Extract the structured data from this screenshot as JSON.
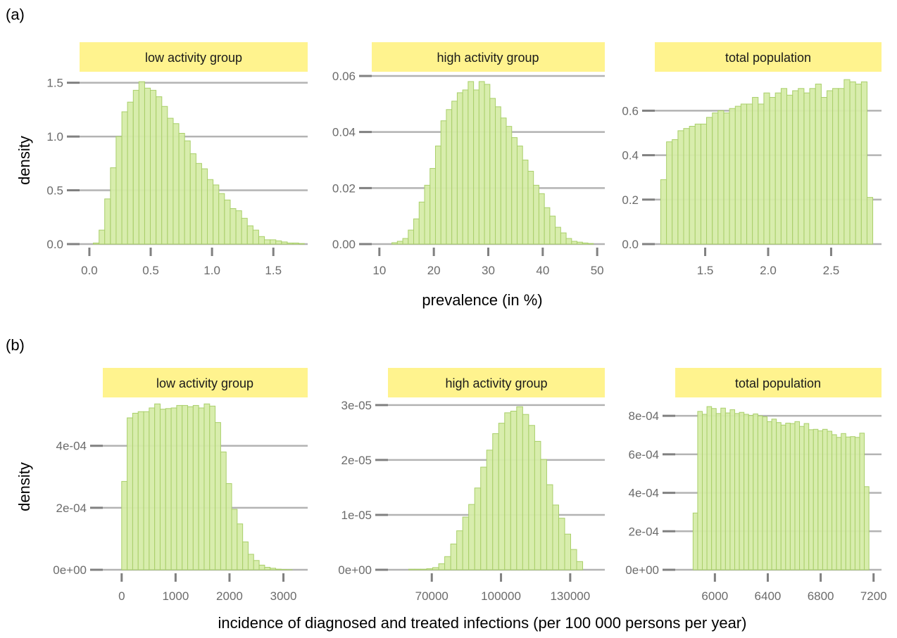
{
  "colors": {
    "bar_fill": "#d6eca9",
    "bar_stroke": "#a9cf6a",
    "strip_fill": "#fff38e",
    "gridline": "#b3b3b3",
    "tick_mark": "#808080"
  },
  "rows": [
    {
      "tag": "(a)",
      "ylabel": "density",
      "xlabel": "prevalence (in %)",
      "charts": [
        {
          "strip": "low activity group",
          "chart_data": {
            "type": "bar",
            "xlim": [
              -0.08,
              1.78
            ],
            "ylim": [
              0,
              1.55
            ],
            "binwidth": 0.0465,
            "bin_start": [
              0.032,
              0.079,
              0.125,
              0.172,
              0.218,
              0.265,
              0.311,
              0.358,
              0.404,
              0.451,
              0.497,
              0.544,
              0.59,
              0.637,
              0.683,
              0.73,
              0.776,
              0.823,
              0.869,
              0.916,
              0.962,
              1.009,
              1.055,
              1.102,
              1.148,
              1.195,
              1.241,
              1.288,
              1.334,
              1.381,
              1.427,
              1.474,
              1.52,
              1.567,
              1.613,
              1.66,
              1.706
            ],
            "values": [
              0.01,
              0.13,
              0.42,
              0.71,
              1.0,
              1.23,
              1.32,
              1.43,
              1.51,
              1.45,
              1.43,
              1.37,
              1.28,
              1.17,
              1.12,
              1.03,
              0.96,
              0.84,
              0.75,
              0.7,
              0.6,
              0.55,
              0.47,
              0.41,
              0.33,
              0.31,
              0.24,
              0.17,
              0.13,
              0.07,
              0.04,
              0.04,
              0.03,
              0.02,
              0.01,
              0.01,
              0.005
            ],
            "xticks": [
              0.0,
              0.5,
              1.0,
              1.5
            ],
            "xtick_labels": [
              "0.0",
              "0.5",
              "1.0",
              "1.5"
            ],
            "yticks": [
              0.0,
              0.5,
              1.0,
              1.5
            ],
            "ytick_labels": [
              "0.0",
              "0.5",
              "1.0",
              "1.5"
            ],
            "grid": "horizontal"
          }
        },
        {
          "strip": "high activity group",
          "chart_data": {
            "type": "bar",
            "xlim": [
              8.6,
              51.4
            ],
            "ylim": [
              0,
              0.062
            ],
            "binwidth": 1.0,
            "bin_start": [
              12.3,
              13.3,
              14.3,
              15.3,
              16.3,
              17.3,
              18.3,
              19.3,
              20.3,
              21.3,
              22.3,
              23.3,
              24.3,
              25.3,
              26.3,
              27.3,
              28.3,
              29.3,
              30.3,
              31.3,
              32.3,
              33.3,
              34.3,
              35.3,
              36.3,
              37.3,
              38.3,
              39.3,
              40.3,
              41.3,
              42.3,
              43.3,
              44.3,
              45.3,
              46.3,
              47.3,
              48.3
            ],
            "values": [
              0.0005,
              0.001,
              0.002,
              0.005,
              0.009,
              0.015,
              0.021,
              0.027,
              0.035,
              0.044,
              0.048,
              0.051,
              0.054,
              0.055,
              0.058,
              0.055,
              0.058,
              0.057,
              0.052,
              0.049,
              0.045,
              0.042,
              0.038,
              0.035,
              0.03,
              0.026,
              0.021,
              0.018,
              0.013,
              0.01,
              0.006,
              0.004,
              0.002,
              0.001,
              0.0007,
              0.0004,
              0.0002
            ],
            "xticks": [
              10,
              20,
              30,
              40,
              50
            ],
            "xtick_labels": [
              "10",
              "20",
              "30",
              "40",
              "50"
            ],
            "yticks": [
              0.0,
              0.02,
              0.04,
              0.06
            ],
            "ytick_labels": [
              "0.00",
              "0.02",
              "0.04",
              "0.06"
            ],
            "grid": "horizontal"
          }
        },
        {
          "strip": "total population",
          "chart_data": {
            "type": "bar",
            "xlim": [
              1.1,
              2.9
            ],
            "ylim": [
              0,
              0.75
            ],
            "binwidth": 0.0455,
            "bin_start": [
              1.147,
              1.193,
              1.238,
              1.284,
              1.329,
              1.375,
              1.42,
              1.466,
              1.511,
              1.557,
              1.602,
              1.648,
              1.693,
              1.739,
              1.784,
              1.83,
              1.875,
              1.921,
              1.966,
              2.012,
              2.057,
              2.103,
              2.148,
              2.194,
              2.239,
              2.285,
              2.33,
              2.376,
              2.421,
              2.467,
              2.512,
              2.558,
              2.603,
              2.649,
              2.694,
              2.74,
              2.785
            ],
            "values": [
              0.29,
              0.46,
              0.47,
              0.51,
              0.52,
              0.53,
              0.54,
              0.54,
              0.57,
              0.59,
              0.6,
              0.59,
              0.61,
              0.62,
              0.63,
              0.63,
              0.66,
              0.63,
              0.68,
              0.66,
              0.68,
              0.7,
              0.67,
              0.69,
              0.7,
              0.68,
              0.7,
              0.72,
              0.66,
              0.69,
              0.7,
              0.7,
              0.74,
              0.73,
              0.72,
              0.73,
              0.21
            ],
            "xticks": [
              1.5,
              2.0,
              2.5
            ],
            "xtick_labels": [
              "1.5",
              "2.0",
              "2.5"
            ],
            "yticks": [
              0.0,
              0.2,
              0.4,
              0.6
            ],
            "ytick_labels": [
              "0.0",
              "0.2",
              "0.4",
              "0.6"
            ],
            "grid": "horizontal"
          }
        }
      ]
    },
    {
      "tag": "(b)",
      "ylabel": "density",
      "xlabel": "incidence of diagnosed and treated infections (per 100 000 persons per year)",
      "charts": [
        {
          "strip": "low activity group",
          "chart_data": {
            "type": "bar",
            "xlim": [
              -350,
              3450
            ],
            "ylim": [
              0,
              0.00054
            ],
            "binwidth": 102,
            "bin_start": [
              0,
              102,
              204,
              306,
              408,
              510,
              612,
              714,
              816,
              918,
              1020,
              1122,
              1224,
              1326,
              1428,
              1530,
              1632,
              1734,
              1836,
              1938,
              2040,
              2142,
              2244,
              2346,
              2448,
              2550,
              2652,
              2754,
              2856,
              2958,
              3060
            ],
            "values": [
              0.000285,
              0.00049,
              0.000505,
              0.00051,
              0.00051,
              0.000522,
              0.000535,
              0.000518,
              0.00052,
              0.000522,
              0.00053,
              0.00053,
              0.000526,
              0.00053,
              0.000522,
              0.000535,
              0.000528,
              0.000475,
              0.00038,
              0.000278,
              0.000195,
              0.000148,
              9e-05,
              5e-05,
              3e-05,
              1.5e-05,
              8e-06,
              5e-06,
              2e-06,
              1e-06,
              5e-07
            ],
            "xticks": [
              0,
              1000,
              2000,
              3000
            ],
            "xtick_labels": [
              "0",
              "1000",
              "2000",
              "3000"
            ],
            "yticks": [
              0,
              0.0002,
              0.0004
            ],
            "ytick_labels": [
              "0e+00",
              "2e-04",
              "4e-04"
            ],
            "grid": "horizontal"
          }
        },
        {
          "strip": "high activity group",
          "chart_data": {
            "type": "bar",
            "xlim": [
              51000,
              145000
            ],
            "ylim": [
              0,
              3.05e-05
            ],
            "binwidth": 2600,
            "bin_start": [
              60000,
              62600,
              65200,
              67800,
              70400,
              73000,
              75600,
              78200,
              80800,
              83400,
              86000,
              88600,
              91200,
              93800,
              96400,
              99000,
              101600,
              104200,
              106800,
              109400,
              112000,
              114600,
              117200,
              119800,
              122400,
              125000,
              127600,
              130200,
              132800
            ],
            "values": [
              1e-07,
              1e-07,
              1e-07,
              2e-07,
              4e-07,
              1.1e-06,
              2.4e-06,
              4.7e-06,
              7.1e-06,
              9.6e-06,
              1.19e-05,
              1.49e-05,
              1.87e-05,
              2.18e-05,
              2.48e-05,
              2.67e-05,
              2.86e-05,
              2.89e-05,
              2.97e-05,
              2.83e-05,
              2.63e-05,
              2.34e-05,
              2.01e-05,
              1.55e-05,
              1.18e-05,
              9.4e-06,
              6.5e-06,
              3.7e-06,
              1.5e-06
            ],
            "xticks": [
              70000,
              100000,
              130000
            ],
            "xtick_labels": [
              "70000",
              "100000",
              "130000"
            ],
            "yticks": [
              0,
              1e-05,
              2e-05,
              3e-05
            ],
            "ytick_labels": [
              "0e+00",
              "1e-05",
              "2e-05",
              "3e-05"
            ],
            "grid": "horizontal"
          }
        },
        {
          "strip": "total population",
          "chart_data": {
            "type": "bar",
            "xlim": [
              5700,
              7260
            ],
            "ylim": [
              0,
              0.00087
            ],
            "binwidth": 35,
            "bin_start": [
              5835,
              5870,
              5905,
              5940,
              5975,
              6010,
              6045,
              6080,
              6115,
              6150,
              6185,
              6220,
              6255,
              6290,
              6325,
              6360,
              6395,
              6430,
              6465,
              6500,
              6535,
              6570,
              6605,
              6640,
              6675,
              6710,
              6745,
              6780,
              6815,
              6850,
              6885,
              6920,
              6955,
              6990,
              7025,
              7060,
              7095,
              7130,
              7165
            ],
            "values": [
              0.000295,
              0.000823,
              0.000808,
              0.000848,
              0.000838,
              0.000812,
              0.00084,
              0.000815,
              0.000832,
              0.000812,
              0.000818,
              0.000808,
              0.000802,
              0.00081,
              0.0008,
              0.000795,
              0.00077,
              0.000783,
              0.000765,
              0.000752,
              0.000762,
              0.00076,
              0.00077,
              0.000745,
              0.00076,
              0.000728,
              0.00073,
              0.000722,
              0.00073,
              0.00072,
              0.000702,
              0.000688,
              0.000708,
              0.00069,
              0.000692,
              0.000688,
              0.00071,
              0.000432,
              0.0
            ],
            "xticks": [
              6000,
              6400,
              6800,
              7200
            ],
            "xtick_labels": [
              "6000",
              "6400",
              "6800",
              "7200"
            ],
            "yticks": [
              0,
              0.0002,
              0.0004,
              0.0006,
              0.0008
            ],
            "ytick_labels": [
              "0e+00",
              "2e-04",
              "4e-04",
              "6e-04",
              "8e-04"
            ],
            "grid": "horizontal"
          }
        }
      ]
    }
  ]
}
